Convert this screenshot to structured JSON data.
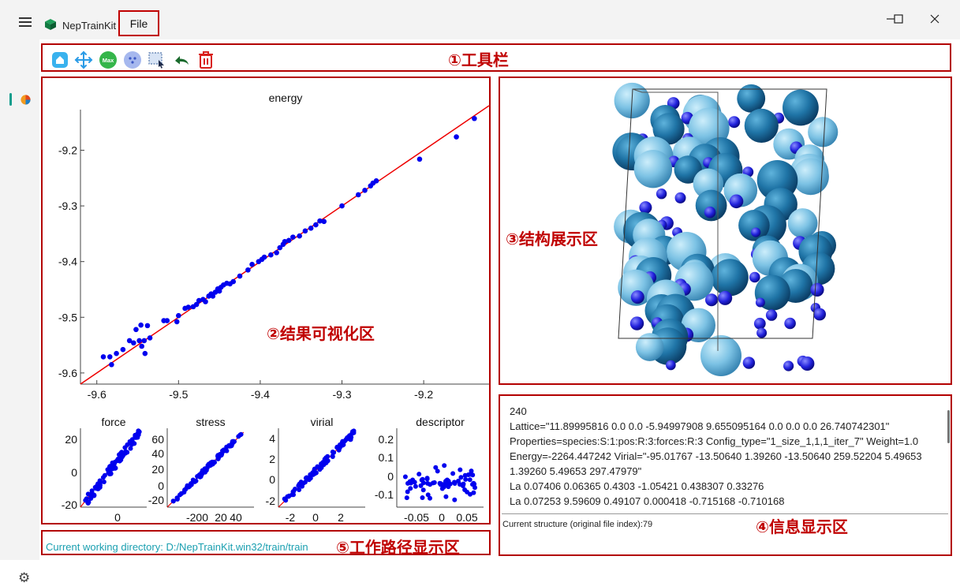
{
  "titlebar": {
    "app_title": "NepTrainKit",
    "file_menu": "File"
  },
  "toolbar_callout": "①工具栏",
  "plot_callout": "②结果可视化区",
  "structure_callout": "③结构展示区",
  "info_callout": "④信息显示区",
  "path_callout": "⑤工作路径显示区",
  "toolbar": {
    "icons": [
      "reset-view-icon",
      "pan-icon",
      "max-error-icon",
      "sample-icon",
      "box-select-icon",
      "undo-icon",
      "delete-icon"
    ]
  },
  "colors": {
    "accent_red": "#c00000",
    "point_blue": "#0000ee",
    "fit_line": "#ee0000",
    "path_text": "#1a9fb0"
  },
  "chart_data": [
    {
      "type": "scatter",
      "title": "energy",
      "xlim": [
        -9.62,
        -9.12
      ],
      "ylim": [
        -9.62,
        -9.12
      ],
      "xticks": [
        "-9.6",
        "-9.5",
        "-9.4",
        "-9.3",
        "-9.2"
      ],
      "yticks": [
        "-9.2",
        "-9.3",
        "-9.4",
        "-9.5",
        "-9.6"
      ],
      "xtick_values": [
        -9.6,
        -9.5,
        -9.4,
        -9.3,
        -9.2
      ],
      "ytick_values": [
        -9.2,
        -9.3,
        -9.4,
        -9.5,
        -9.6
      ],
      "fit_line": true,
      "points": [
        [
          -9.592,
          -9.571
        ],
        [
          -9.584,
          -9.571
        ],
        [
          -9.582,
          -9.585
        ],
        [
          -9.576,
          -9.565
        ],
        [
          -9.568,
          -9.558
        ],
        [
          -9.56,
          -9.542
        ],
        [
          -9.555,
          -9.546
        ],
        [
          -9.552,
          -9.522
        ],
        [
          -9.548,
          -9.542
        ],
        [
          -9.546,
          -9.514
        ],
        [
          -9.545,
          -9.552
        ],
        [
          -9.542,
          -9.542
        ],
        [
          -9.541,
          -9.565
        ],
        [
          -9.538,
          -9.515
        ],
        [
          -9.535,
          -9.537
        ],
        [
          -9.518,
          -9.506
        ],
        [
          -9.514,
          -9.506
        ],
        [
          -9.502,
          -9.508
        ],
        [
          -9.5,
          -9.497
        ],
        [
          -9.492,
          -9.484
        ],
        [
          -9.488,
          -9.482
        ],
        [
          -9.482,
          -9.481
        ],
        [
          -9.478,
          -9.477
        ],
        [
          -9.475,
          -9.47
        ],
        [
          -9.47,
          -9.468
        ],
        [
          -9.467,
          -9.472
        ],
        [
          -9.463,
          -9.462
        ],
        [
          -9.46,
          -9.458
        ],
        [
          -9.458,
          -9.462
        ],
        [
          -9.455,
          -9.455
        ],
        [
          -9.452,
          -9.449
        ],
        [
          -9.45,
          -9.453
        ],
        [
          -9.448,
          -9.446
        ],
        [
          -9.445,
          -9.442
        ],
        [
          -9.441,
          -9.439
        ],
        [
          -9.437,
          -9.44
        ],
        [
          -9.433,
          -9.436
        ],
        [
          -9.425,
          -9.426
        ],
        [
          -9.415,
          -9.415
        ],
        [
          -9.41,
          -9.405
        ],
        [
          -9.402,
          -9.4
        ],
        [
          -9.398,
          -9.396
        ],
        [
          -9.395,
          -9.392
        ],
        [
          -9.387,
          -9.388
        ],
        [
          -9.38,
          -9.384
        ],
        [
          -9.376,
          -9.375
        ],
        [
          -9.372,
          -9.369
        ],
        [
          -9.37,
          -9.364
        ],
        [
          -9.365,
          -9.362
        ],
        [
          -9.36,
          -9.356
        ],
        [
          -9.352,
          -9.354
        ],
        [
          -9.345,
          -9.345
        ],
        [
          -9.338,
          -9.34
        ],
        [
          -9.332,
          -9.334
        ],
        [
          -9.327,
          -9.327
        ],
        [
          -9.322,
          -9.328
        ],
        [
          -9.3,
          -9.3
        ],
        [
          -9.28,
          -9.28
        ],
        [
          -9.272,
          -9.272
        ],
        [
          -9.265,
          -9.264
        ],
        [
          -9.262,
          -9.259
        ],
        [
          -9.258,
          -9.255
        ],
        [
          -9.205,
          -9.216
        ],
        [
          -9.16,
          -9.176
        ],
        [
          -9.138,
          -9.143
        ]
      ]
    },
    {
      "type": "scatter",
      "title": "force",
      "xticks": [
        "0"
      ],
      "yticks": [
        "20",
        "0",
        "-20"
      ]
    },
    {
      "type": "scatter",
      "title": "stress",
      "xticks": [
        "-200",
        "20",
        "40"
      ],
      "yticks": [
        "60",
        "40",
        "20",
        "0",
        "-20"
      ]
    },
    {
      "type": "scatter",
      "title": "virial",
      "xticks": [
        "-2",
        "0",
        "2"
      ],
      "yticks": [
        "4",
        "2",
        "0",
        "-2"
      ]
    },
    {
      "type": "scatter",
      "title": "descriptor",
      "xticks": [
        "-0.05",
        "0",
        "0.05"
      ],
      "yticks": [
        "0.2",
        "0.1",
        "0",
        "-0.1"
      ]
    }
  ],
  "info": {
    "lines": [
      "240",
      "Lattice=\"11.89995816 0.0 0.0 -5.94997908 9.655095164 0.0 0.0 0.0 26.740742301\"",
      "Properties=species:S:1:pos:R:3:forces:R:3 Config_type=\"1_size_1,1,1_iter_7\" Weight=1.0",
      "Energy=-2264.447242 Virial=\"-95.01767 -13.50640 1.39260 -13.50640 259.52204 5.49653",
      "1.39260 5.49653 297.47979\"",
      "La 0.07406 0.06365 0.4303 -1.05421 0.438307 0.33276",
      "La 0.07253 9.59609 0.49107 0.000418 -0.715168 -0.710168"
    ],
    "status": "Current structure (original file index):79"
  },
  "path": {
    "text": "Current working directory: D:/NepTrainKit.win32/train/train"
  }
}
